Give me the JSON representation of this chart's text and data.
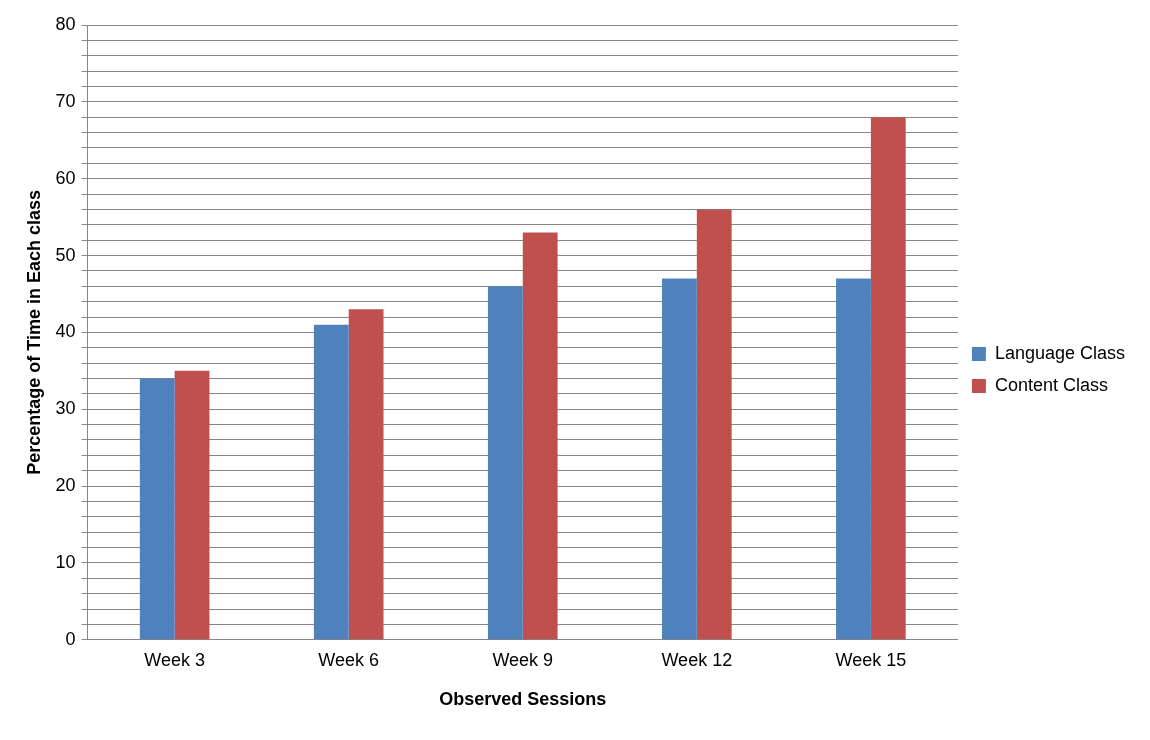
{
  "chart_data": {
    "type": "bar",
    "xlabel": "Observed Sessions",
    "ylabel": "Percentage of Time in Each class",
    "categories": [
      "Week 3",
      "Week 6",
      "Week 9",
      "Week 12",
      "Week 15"
    ],
    "series": [
      {
        "name": "Language Class",
        "color": "#4f81bd",
        "values": [
          34,
          41,
          46,
          47,
          47
        ]
      },
      {
        "name": "Content Class",
        "color": "#c0504d",
        "values": [
          35,
          43,
          53,
          56,
          68
        ]
      }
    ],
    "ylim": [
      0,
      80
    ],
    "yticks": [
      0,
      {
        "value": 2,
        "label": null
      },
      {
        "value": 4,
        "label": null
      },
      {
        "value": 6,
        "label": null
      },
      {
        "value": 8,
        "label": null
      },
      10,
      {
        "value": 12,
        "label": null
      },
      {
        "value": 14,
        "label": null
      },
      {
        "value": 16,
        "label": null
      },
      {
        "value": 18,
        "label": null
      },
      20,
      {
        "value": 22,
        "label": null
      },
      {
        "value": 24,
        "label": null
      },
      {
        "value": 26,
        "label": null
      },
      {
        "value": 28,
        "label": null
      },
      30,
      {
        "value": 32,
        "label": null
      },
      {
        "value": 34,
        "label": null
      },
      {
        "value": 36,
        "label": null
      },
      {
        "value": 38,
        "label": null
      },
      40,
      {
        "value": 42,
        "label": null
      },
      {
        "value": 44,
        "label": null
      },
      {
        "value": 46,
        "label": null
      },
      {
        "value": 48,
        "label": null
      },
      50,
      {
        "value": 52,
        "label": null
      },
      {
        "value": 54,
        "label": null
      },
      {
        "value": 56,
        "label": null
      },
      {
        "value": 58,
        "label": null
      },
      60,
      {
        "value": 62,
        "label": null
      },
      {
        "value": 64,
        "label": null
      },
      {
        "value": 66,
        "label": null
      },
      {
        "value": 68,
        "label": null
      },
      70,
      {
        "value": 72,
        "label": null
      },
      {
        "value": 74,
        "label": null
      },
      {
        "value": 76,
        "label": null
      },
      {
        "value": 78,
        "label": null
      },
      80
    ],
    "grid": "y",
    "legend": "right"
  }
}
